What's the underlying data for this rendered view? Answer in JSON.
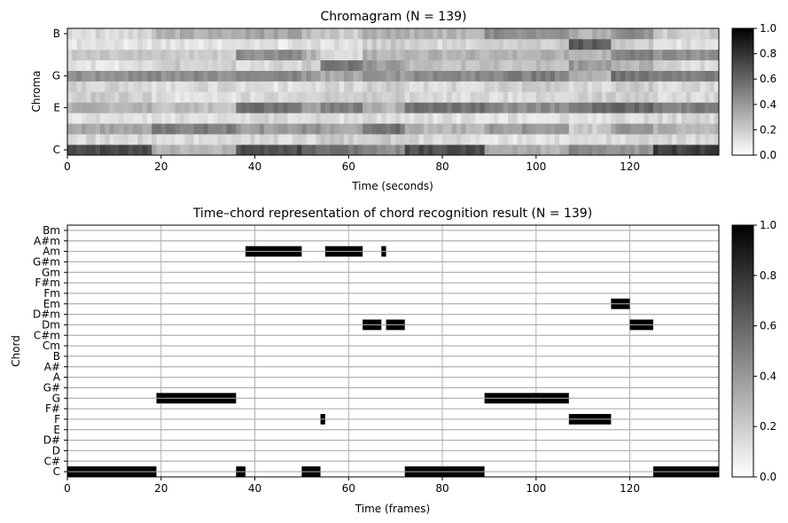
{
  "chart_data": [
    {
      "type": "heatmap",
      "title": "Chromagram (N = 139)",
      "xlabel": "Time (seconds)",
      "ylabel": "Chroma",
      "xlim": [
        0,
        139
      ],
      "x_ticks": [
        "0",
        "20",
        "40",
        "60",
        "80",
        "100",
        "120"
      ],
      "y_ticks": [
        "C",
        "E",
        "G",
        "B"
      ],
      "rows": [
        "C",
        "C#",
        "D",
        "D#",
        "E",
        "F",
        "F#",
        "G",
        "G#",
        "A",
        "A#",
        "B"
      ],
      "colorbar": {
        "range": [
          0,
          1
        ],
        "ticks": [
          "0.0",
          "0.2",
          "0.4",
          "0.6",
          "0.8",
          "1.0"
        ]
      },
      "segments": [
        {
          "x0": 0,
          "x1": 18,
          "levels": [
            0.72,
            0.15,
            0.35,
            0.12,
            0.3,
            0.2,
            0.18,
            0.45,
            0.12,
            0.2,
            0.1,
            0.15
          ]
        },
        {
          "x0": 18,
          "x1": 36,
          "levels": [
            0.3,
            0.15,
            0.5,
            0.12,
            0.25,
            0.12,
            0.15,
            0.45,
            0.2,
            0.2,
            0.12,
            0.3
          ]
        },
        {
          "x0": 36,
          "x1": 50,
          "levels": [
            0.7,
            0.15,
            0.4,
            0.15,
            0.55,
            0.15,
            0.12,
            0.5,
            0.15,
            0.45,
            0.1,
            0.35
          ]
        },
        {
          "x0": 50,
          "x1": 54,
          "levels": [
            0.6,
            0.15,
            0.45,
            0.15,
            0.35,
            0.2,
            0.15,
            0.4,
            0.2,
            0.3,
            0.15,
            0.25
          ]
        },
        {
          "x0": 54,
          "x1": 63,
          "levels": [
            0.55,
            0.2,
            0.35,
            0.12,
            0.5,
            0.2,
            0.15,
            0.35,
            0.55,
            0.15,
            0.12,
            0.2
          ]
        },
        {
          "x0": 63,
          "x1": 72,
          "levels": [
            0.45,
            0.2,
            0.55,
            0.15,
            0.3,
            0.2,
            0.2,
            0.4,
            0.4,
            0.3,
            0.2,
            0.3
          ]
        },
        {
          "x0": 72,
          "x1": 89,
          "levels": [
            0.7,
            0.15,
            0.3,
            0.12,
            0.55,
            0.15,
            0.15,
            0.45,
            0.25,
            0.3,
            0.15,
            0.3
          ]
        },
        {
          "x0": 89,
          "x1": 107,
          "levels": [
            0.3,
            0.12,
            0.4,
            0.12,
            0.45,
            0.15,
            0.2,
            0.5,
            0.25,
            0.3,
            0.2,
            0.45
          ]
        },
        {
          "x0": 107,
          "x1": 116,
          "levels": [
            0.45,
            0.15,
            0.2,
            0.12,
            0.55,
            0.2,
            0.15,
            0.3,
            0.4,
            0.3,
            0.65,
            0.3
          ]
        },
        {
          "x0": 116,
          "x1": 125,
          "levels": [
            0.4,
            0.15,
            0.4,
            0.15,
            0.6,
            0.2,
            0.2,
            0.55,
            0.3,
            0.5,
            0.2,
            0.45
          ]
        },
        {
          "x0": 125,
          "x1": 139,
          "levels": [
            0.75,
            0.15,
            0.3,
            0.15,
            0.5,
            0.15,
            0.15,
            0.5,
            0.15,
            0.45,
            0.12,
            0.2
          ]
        }
      ]
    },
    {
      "type": "heatmap",
      "title": "Time–chord representation of chord recognition result (N = 139)",
      "xlabel": "Time (frames)",
      "ylabel": "Chord",
      "xlim": [
        0,
        139
      ],
      "x_ticks": [
        "0",
        "20",
        "40",
        "60",
        "80",
        "100",
        "120"
      ],
      "chords": [
        "C",
        "C#",
        "D",
        "D#",
        "E",
        "F",
        "F#",
        "G",
        "G#",
        "A",
        "A#",
        "B",
        "Cm",
        "C#m",
        "Dm",
        "D#m",
        "Em",
        "Fm",
        "F#m",
        "Gm",
        "G#m",
        "Am",
        "A#m",
        "Bm"
      ],
      "grid": true,
      "colorbar": {
        "range": [
          0,
          1
        ],
        "ticks": [
          "0.0",
          "0.2",
          "0.4",
          "0.6",
          "0.8",
          "1.0"
        ]
      },
      "active_segments": [
        {
          "chord": "C",
          "start": 0,
          "end": 19
        },
        {
          "chord": "G",
          "start": 19,
          "end": 36
        },
        {
          "chord": "C",
          "start": 36,
          "end": 38
        },
        {
          "chord": "Am",
          "start": 38,
          "end": 50
        },
        {
          "chord": "C",
          "start": 50,
          "end": 54
        },
        {
          "chord": "F",
          "start": 54,
          "end": 55
        },
        {
          "chord": "Am",
          "start": 55,
          "end": 63
        },
        {
          "chord": "Dm",
          "start": 63,
          "end": 67
        },
        {
          "chord": "Am",
          "start": 67,
          "end": 68
        },
        {
          "chord": "Dm",
          "start": 68,
          "end": 72
        },
        {
          "chord": "C",
          "start": 72,
          "end": 89
        },
        {
          "chord": "G",
          "start": 89,
          "end": 107
        },
        {
          "chord": "F",
          "start": 107,
          "end": 116
        },
        {
          "chord": "Em",
          "start": 116,
          "end": 120
        },
        {
          "chord": "Dm",
          "start": 120,
          "end": 125
        },
        {
          "chord": "C",
          "start": 125,
          "end": 139
        }
      ]
    }
  ]
}
